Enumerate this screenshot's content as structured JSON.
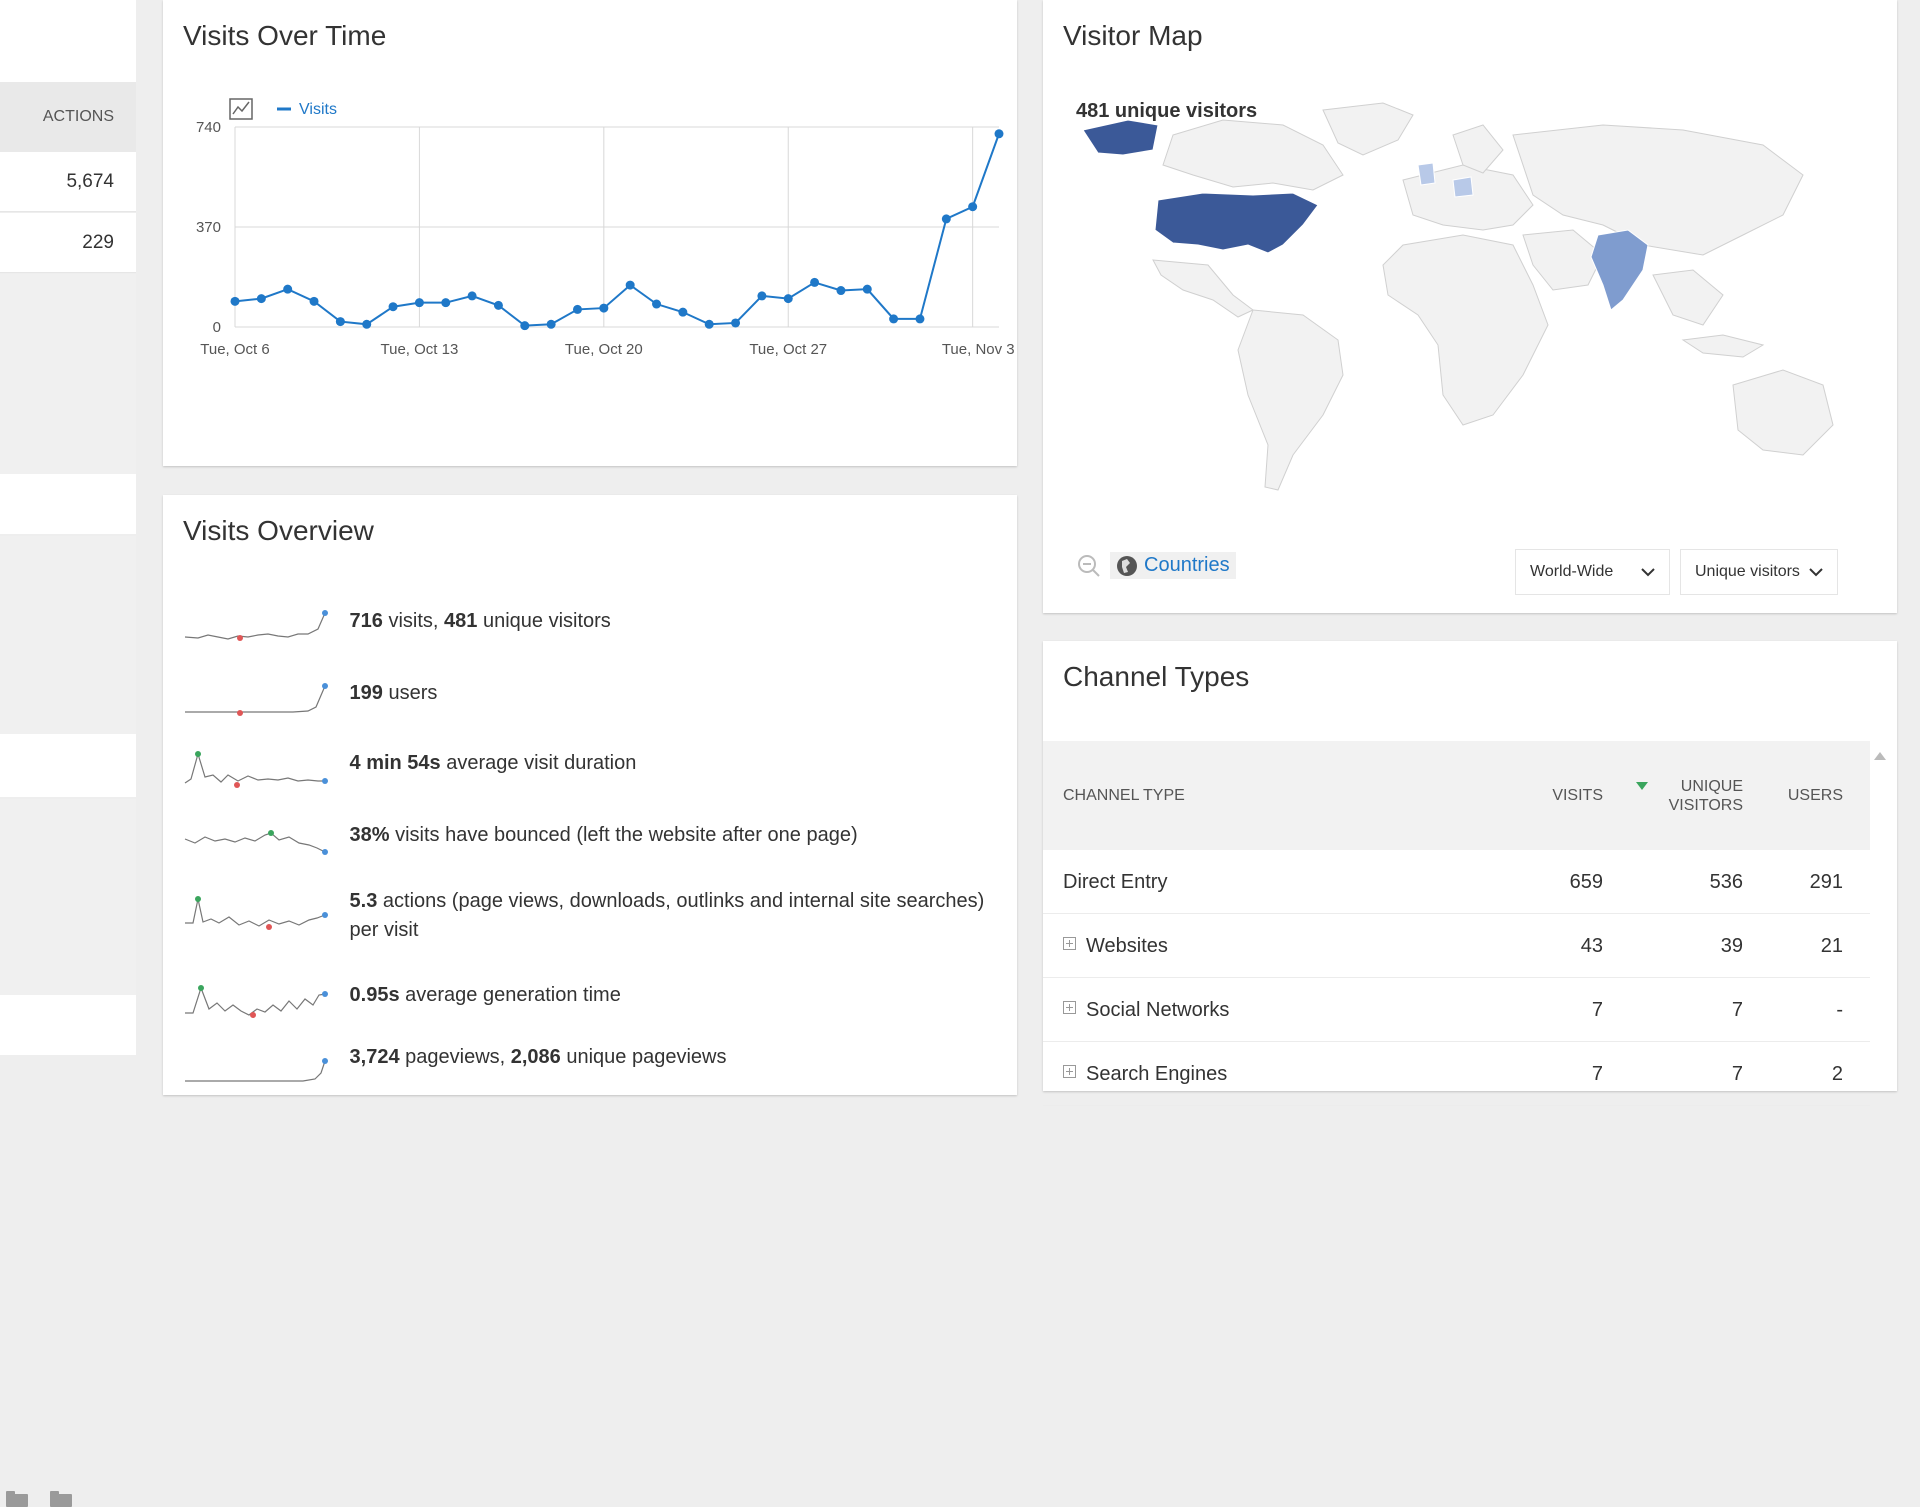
{
  "left_panel": {
    "header": "ACTIONS",
    "values": [
      "5,674",
      "229"
    ]
  },
  "visits_over_time": {
    "title": "Visits Over Time",
    "legend": "Visits"
  },
  "chart_data": {
    "type": "line",
    "title": "",
    "xlabel": "",
    "ylabel": "",
    "legend_position": "top-left",
    "grid": true,
    "ylim": [
      0,
      740
    ],
    "y_ticks": [
      "0",
      "370",
      "740"
    ],
    "x_tick_labels": [
      "Tue, Oct 6",
      "Tue, Oct 13",
      "Tue, Oct 20",
      "Tue, Oct 27",
      "Tue, Nov 3"
    ],
    "x": [
      "Oct 6",
      "Oct 7",
      "Oct 8",
      "Oct 9",
      "Oct 10",
      "Oct 11",
      "Oct 12",
      "Oct 13",
      "Oct 14",
      "Oct 15",
      "Oct 16",
      "Oct 17",
      "Oct 18",
      "Oct 19",
      "Oct 20",
      "Oct 21",
      "Oct 22",
      "Oct 23",
      "Oct 24",
      "Oct 25",
      "Oct 26",
      "Oct 27",
      "Oct 28",
      "Oct 29",
      "Oct 30",
      "Oct 31",
      "Nov 1",
      "Nov 2",
      "Nov 3",
      "Nov 4"
    ],
    "series": [
      {
        "name": "Visits",
        "color": "#1f78c8",
        "values": [
          95,
          105,
          140,
          95,
          20,
          10,
          75,
          90,
          90,
          115,
          80,
          5,
          10,
          65,
          70,
          155,
          85,
          55,
          10,
          15,
          115,
          105,
          165,
          135,
          140,
          30,
          30,
          400,
          445,
          715
        ]
      }
    ]
  },
  "visits_overview": {
    "title": "Visits Overview",
    "rows": [
      {
        "bold1": "716",
        "text1": " visits, ",
        "bold2": "481",
        "text2": " unique visitors"
      },
      {
        "bold1": "199",
        "text1": " users",
        "bold2": "",
        "text2": ""
      },
      {
        "bold1": "4 min 54s",
        "text1": " average visit duration",
        "bold2": "",
        "text2": ""
      },
      {
        "bold1": "38%",
        "text1": " visits have bounced (left the website after one page)",
        "bold2": "",
        "text2": ""
      },
      {
        "bold1": "5.3",
        "text1": " actions (page views, downloads, outlinks and internal site searches) per visit",
        "bold2": "",
        "text2": ""
      },
      {
        "bold1": "0.95s",
        "text1": " average generation time",
        "bold2": "",
        "text2": ""
      },
      {
        "bold1": "3,724",
        "text1": " pageviews, ",
        "bold2": "2,086",
        "text2": " unique pageviews"
      }
    ]
  },
  "visitor_map": {
    "title": "Visitor Map",
    "label": "481 unique visitors",
    "countries_button": "Countries",
    "region_select": "World-Wide",
    "metric_select": "Unique visitors",
    "colors": {
      "high": "#3b5998",
      "medium": "#7f9ccf",
      "low": "#b8c9e8",
      "none": "#f2f2f2"
    }
  },
  "channel_types": {
    "title": "Channel Types",
    "columns": {
      "type": "CHANNEL TYPE",
      "visits": "VISITS",
      "unique": "UNIQUE VISITORS",
      "users": "USERS"
    },
    "rows": [
      {
        "label": "Direct Entry",
        "visits": "659",
        "unique": "536",
        "users": "291",
        "expandable": false
      },
      {
        "label": "Websites",
        "visits": "43",
        "unique": "39",
        "users": "21",
        "expandable": true
      },
      {
        "label": "Social Networks",
        "visits": "7",
        "unique": "7",
        "users": "-",
        "expandable": true
      },
      {
        "label": "Search Engines",
        "visits": "7",
        "unique": "7",
        "users": "2",
        "expandable": true
      }
    ]
  }
}
